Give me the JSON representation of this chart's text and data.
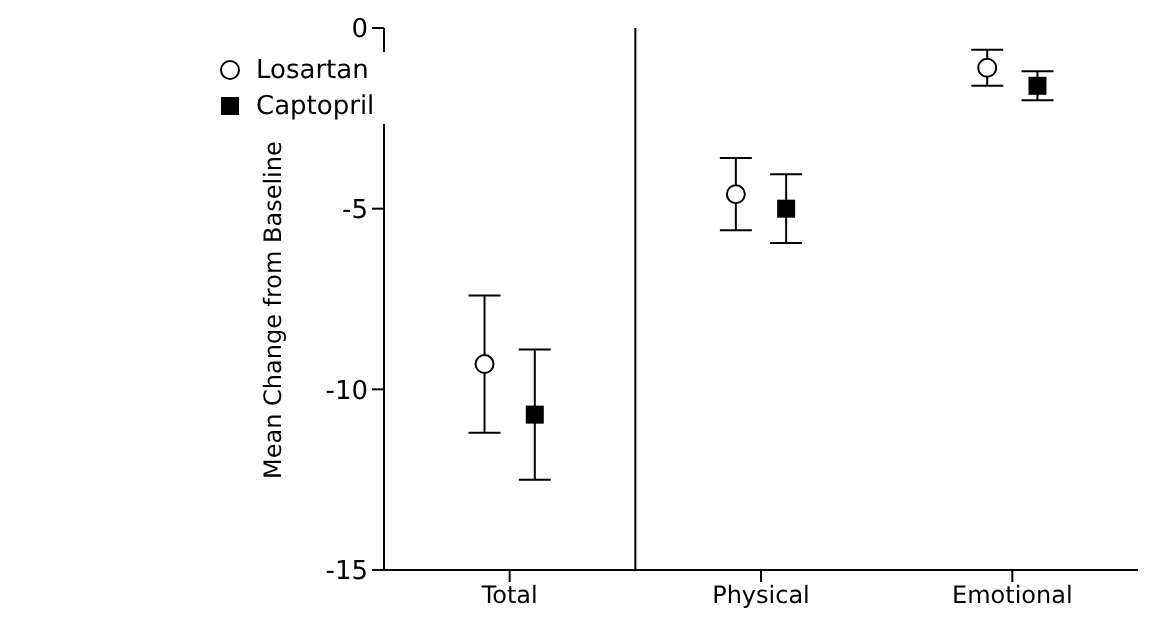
{
  "chart_data": {
    "type": "scatter",
    "ylabel": "Mean Change from Baseline",
    "categories": [
      "Total",
      "Physical",
      "Emotional"
    ],
    "series": [
      {
        "name": "Losartan",
        "color": "#000000",
        "marker": "circle",
        "values": [
          -9.3,
          -4.6,
          -1.1
        ],
        "errors": [
          1.9,
          1.0,
          0.5
        ]
      },
      {
        "name": "Captopril",
        "color": "#000000",
        "marker": "square",
        "values": [
          -10.7,
          -5.0,
          -1.6
        ],
        "errors": [
          1.8,
          0.95,
          0.4
        ]
      }
    ],
    "ylim": [
      -15,
      0
    ],
    "yticks": [
      0,
      -5,
      -10,
      -15
    ],
    "grid": false,
    "legend": "top left"
  }
}
